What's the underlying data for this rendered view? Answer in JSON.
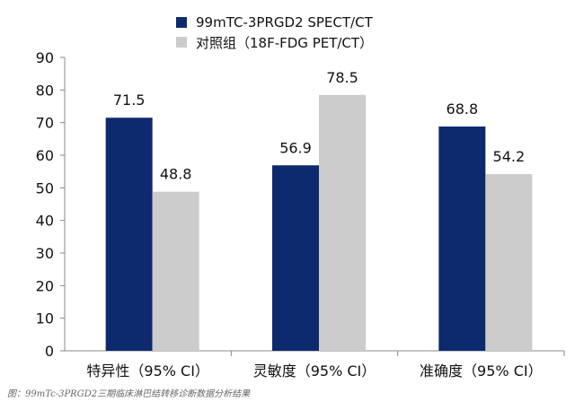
{
  "chart_data": {
    "type": "bar",
    "categories": [
      "特异性（95% CI）",
      "灵敏度（95% CI）",
      "准确度（95% CI）"
    ],
    "series": [
      {
        "name": "99mTC-3PRGD2 SPECT/CT",
        "values": [
          71.5,
          56.9,
          68.8
        ],
        "color": "#0d2a6e"
      },
      {
        "name": "对照组（18F-FDG PET/CT）",
        "values": [
          48.8,
          78.5,
          54.2
        ],
        "color": "#cccccc"
      }
    ],
    "ylim": [
      0,
      90
    ],
    "yticks": [
      "0",
      "10",
      "20",
      "30",
      "40",
      "50",
      "60",
      "70",
      "80",
      "90"
    ],
    "data_labels": [
      [
        "71.5",
        "56.9",
        "68.8"
      ],
      [
        "48.8",
        "78.5",
        "54.2"
      ]
    ],
    "legend_position": "top",
    "grid": false
  },
  "caption": "图：99mTc-3PRGD2三期临床淋巴结转移诊断数据分析结果"
}
